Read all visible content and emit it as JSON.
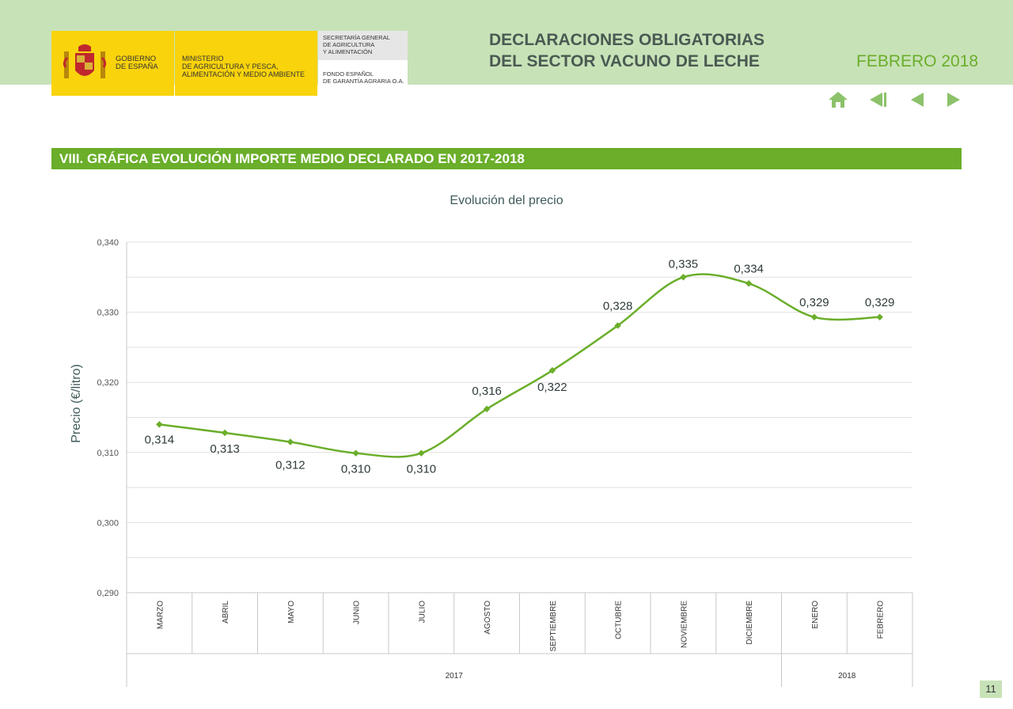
{
  "header": {
    "gov_line": "GOBIERNO\nDE ESPAÑA",
    "ministry": "MINISTERIO\nDE AGRICULTURA Y PESCA,\nALIMENTACIÓN Y MEDIO AMBIENTE",
    "secretaria": "SECRETARÍA GENERAL\nDE AGRICULTURA\nY ALIMENTACIÓN",
    "fondo": "FONDO ESPAÑOL\nDE GARANTÍA AGRARIA O.A.",
    "title": "DECLARACIONES OBLIGATORIAS\nDEL SECTOR VACUNO DE LECHE",
    "date": "FEBRERO 2018"
  },
  "colors": {
    "header_band": "#c8e2b8",
    "accent": "#6aae2a",
    "logo_yellow": "#f9d30b",
    "title_text": "#4a5a52"
  },
  "nav": {
    "icons": [
      "home-icon",
      "first-page-icon",
      "previous-icon",
      "next-icon"
    ]
  },
  "section": {
    "title": "VIII. GRÁFICA EVOLUCIÓN IMPORTE MEDIO DECLARADO EN 2017-2018"
  },
  "page_number": "11",
  "chart_data": {
    "type": "line",
    "title": "Evolución del precio",
    "ylabel": "Precio (€/litro)",
    "ylim": [
      0.29,
      0.34
    ],
    "yticks": [
      "0,290",
      "0,300",
      "0,310",
      "0,320",
      "0,330",
      "0,340"
    ],
    "ytick_values": [
      0.29,
      0.3,
      0.31,
      0.32,
      0.33,
      0.34
    ],
    "grid": true,
    "categories": [
      "MARZO",
      "ABRIL",
      "MAYO",
      "JUNIO",
      "JULIO",
      "AGOSTO",
      "SEPTIEMBRE",
      "OCTUBRE",
      "NOVIEMBRE",
      "DICIEMBRE",
      "ENERO",
      "FEBRERO"
    ],
    "groups": [
      {
        "label": "2017",
        "span": 10
      },
      {
        "label": "2018",
        "span": 2
      }
    ],
    "series": [
      {
        "values": [
          0.314,
          0.3128,
          0.3115,
          0.3099,
          0.3099,
          0.3162,
          0.3217,
          0.3281,
          0.335,
          0.3341,
          0.3293,
          0.3293
        ],
        "labels": [
          "0,314",
          "0,313",
          "0,312",
          "0,310",
          "0,310",
          "0,316",
          "0,322",
          "0,328",
          "0,335",
          "0,334",
          "0,329",
          "0,329"
        ],
        "color": "#6aae2a"
      }
    ]
  }
}
